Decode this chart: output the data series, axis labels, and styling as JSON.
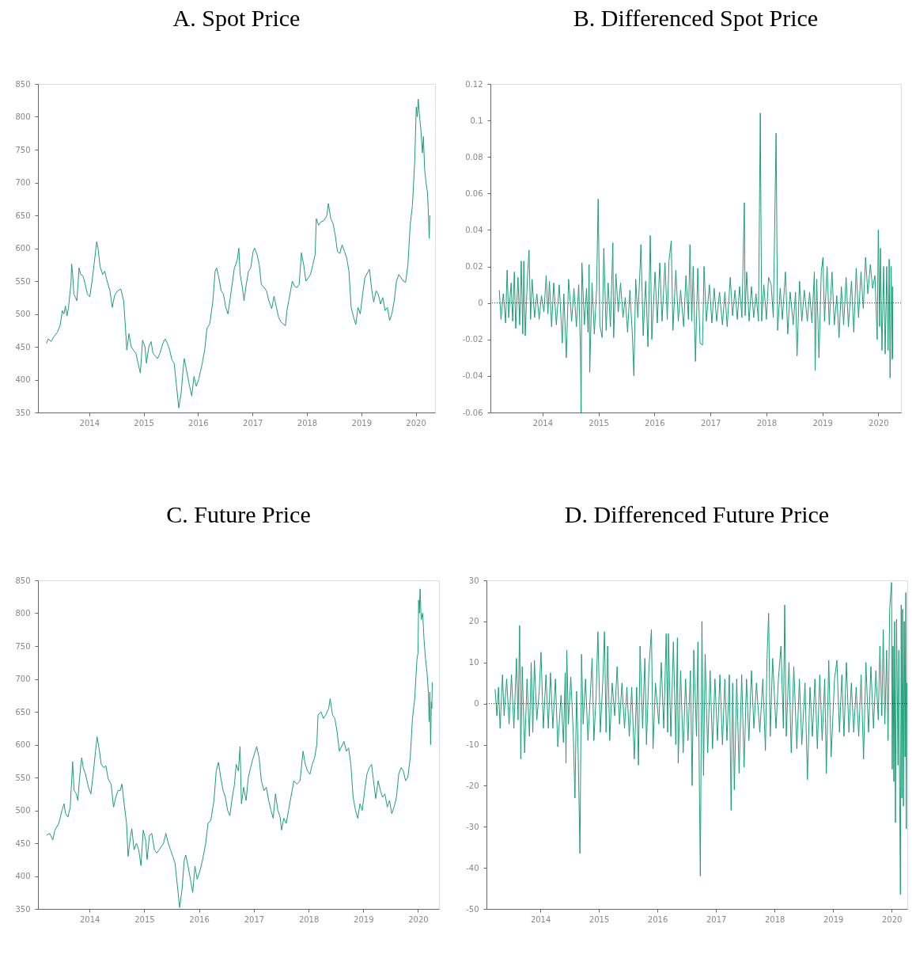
{
  "chart_data": [
    {
      "type": "line",
      "title": "A.  Spot Price",
      "grid": false,
      "xlim": [
        "2013-01-22",
        "2020-05-10"
      ],
      "xticks": [
        "2014",
        "2015",
        "2016",
        "2017",
        "2018",
        "2019",
        "2020"
      ],
      "ylim": [
        350,
        850
      ],
      "yticks": [
        350,
        400,
        450,
        500,
        550,
        600,
        650,
        700,
        750,
        800,
        850
      ],
      "x": [
        "2013-03-20",
        "2013-04-01",
        "2013-04-20",
        "2013-05-10",
        "2013-06-01",
        "2013-06-20",
        "2013-07-05",
        "2013-07-15",
        "2013-07-25",
        "2013-08-05",
        "2013-08-15",
        "2013-09-01",
        "2013-09-05",
        "2013-09-12",
        "2013-09-20",
        "2013-10-01",
        "2013-10-10",
        "2013-10-25",
        "2013-11-05",
        "2013-11-20",
        "2013-12-05",
        "2013-12-20",
        "2014-01-05",
        "2014-01-20",
        "2014-02-05",
        "2014-02-20",
        "2014-03-01",
        "2014-03-15",
        "2014-04-01",
        "2014-04-15",
        "2014-05-01",
        "2014-05-20",
        "2014-06-05",
        "2014-06-20",
        "2014-07-10",
        "2014-08-01",
        "2014-08-20",
        "2014-09-01",
        "2014-09-10",
        "2014-09-25",
        "2014-10-10",
        "2014-10-25",
        "2014-11-10",
        "2014-11-25",
        "2014-12-10",
        "2014-12-25",
        "2015-01-10",
        "2015-01-20",
        "2015-02-05",
        "2015-02-20",
        "2015-03-05",
        "2015-03-20",
        "2015-04-05",
        "2015-04-20",
        "2015-05-10",
        "2015-05-25",
        "2015-06-10",
        "2015-06-25",
        "2015-07-10",
        "2015-07-25",
        "2015-08-10",
        "2015-08-25",
        "2015-09-10",
        "2015-09-25",
        "2015-10-01",
        "2015-10-15",
        "2015-11-01",
        "2015-11-20",
        "2015-12-05",
        "2015-12-20",
        "2016-01-05",
        "2016-01-25",
        "2016-02-15",
        "2016-03-01",
        "2016-03-20",
        "2016-04-10",
        "2016-04-25",
        "2016-05-05",
        "2016-05-20",
        "2016-06-05",
        "2016-06-20",
        "2016-07-05",
        "2016-07-20",
        "2016-08-05",
        "2016-08-20",
        "2016-09-01",
        "2016-09-10",
        "2016-09-20",
        "2016-10-01",
        "2016-10-10",
        "2016-10-25",
        "2016-11-05",
        "2016-11-20",
        "2016-12-05",
        "2016-12-20",
        "2017-01-05",
        "2017-01-15",
        "2017-02-01",
        "2017-02-15",
        "2017-03-01",
        "2017-03-20",
        "2017-04-05",
        "2017-04-20",
        "2017-05-10",
        "2017-05-25",
        "2017-06-10",
        "2017-06-25",
        "2017-07-10",
        "2017-07-25",
        "2017-08-10",
        "2017-08-20",
        "2017-09-05",
        "2017-09-25",
        "2017-10-10",
        "2017-10-25",
        "2017-11-10",
        "2017-11-25",
        "2017-12-10",
        "2017-12-25",
        "2018-01-10",
        "2018-01-25",
        "2018-02-10",
        "2018-02-25",
        "2018-03-05",
        "2018-03-20",
        "2018-04-05",
        "2018-04-25",
        "2018-05-15",
        "2018-05-25",
        "2018-06-10",
        "2018-06-25",
        "2018-07-10",
        "2018-07-25",
        "2018-08-10",
        "2018-08-25",
        "2018-09-10",
        "2018-09-25",
        "2018-10-10",
        "2018-10-25",
        "2018-11-10",
        "2018-11-25",
        "2018-12-10",
        "2018-12-25",
        "2019-01-10",
        "2019-01-25",
        "2019-02-10",
        "2019-02-25",
        "2019-03-10",
        "2019-03-25",
        "2019-04-10",
        "2019-04-25",
        "2019-05-10",
        "2019-05-25",
        "2019-06-10",
        "2019-06-25",
        "2019-07-10",
        "2019-07-25",
        "2019-08-10",
        "2019-08-25",
        "2019-09-10",
        "2019-09-25",
        "2019-10-10",
        "2019-10-25",
        "2019-11-10",
        "2019-11-25",
        "2019-12-10",
        "2019-12-25",
        "2020-01-05",
        "2020-01-12",
        "2020-01-18",
        "2020-01-25",
        "2020-02-05",
        "2020-02-15",
        "2020-02-22",
        "2020-03-01",
        "2020-03-10",
        "2020-03-20",
        "2020-03-25",
        "2020-04-01",
        "2020-04-05"
      ],
      "series": [
        {
          "color": "#1b9e77",
          "values": [
            455,
            462,
            458,
            466,
            472,
            483,
            505,
            500,
            512,
            497,
            510,
            548,
            576,
            560,
            530,
            525,
            520,
            570,
            560,
            558,
            545,
            530,
            526,
            550,
            580,
            610,
            600,
            572,
            560,
            565,
            550,
            535,
            510,
            528,
            535,
            538,
            520,
            480,
            445,
            470,
            450,
            445,
            440,
            425,
            410,
            460,
            450,
            425,
            450,
            458,
            440,
            436,
            432,
            440,
            455,
            462,
            455,
            445,
            430,
            425,
            390,
            357,
            380,
            420,
            432,
            415,
            395,
            375,
            405,
            390,
            400,
            420,
            445,
            478,
            485,
            520,
            565,
            570,
            555,
            535,
            530,
            510,
            500,
            525,
            550,
            570,
            575,
            582,
            600,
            560,
            540,
            520,
            545,
            565,
            570,
            595,
            600,
            590,
            575,
            545,
            540,
            535,
            520,
            508,
            527,
            510,
            495,
            488,
            485,
            482,
            505,
            525,
            550,
            542,
            540,
            545,
            593,
            575,
            550,
            555,
            560,
            575,
            590,
            645,
            635,
            640,
            642,
            650,
            668,
            645,
            638,
            620,
            595,
            592,
            605,
            595,
            585,
            565,
            510,
            495,
            484,
            510,
            500,
            530,
            555,
            562,
            568,
            540,
            518,
            535,
            530,
            515,
            525,
            505,
            510,
            490,
            500,
            520,
            550,
            560,
            555,
            550,
            548,
            575,
            635,
            665,
            730,
            815,
            800,
            827,
            805,
            780,
            745,
            770,
            720,
            700,
            685,
            660,
            615,
            650
          ]
        }
      ]
    },
    {
      "type": "line",
      "title": "B. Differenced Spot Price",
      "grid": false,
      "xlim": [
        "2013-01-26",
        "2020-05-28"
      ],
      "xticks": [
        "2014",
        "2015",
        "2016",
        "2017",
        "2018",
        "2019",
        "2020"
      ],
      "ylim": [
        -0.06,
        0.12
      ],
      "yticks": [
        -0.06,
        -0.04,
        -0.02,
        0,
        0.02,
        0.04,
        0.06,
        0.08,
        0.1,
        0.12
      ],
      "ref_lines": [
        {
          "axis": "y",
          "value": 0,
          "line_style": "dotted",
          "color": "#000000"
        }
      ],
      "x": [
        "2013-03-25",
        "2013-04-05",
        "2013-04-20",
        "2013-05-05",
        "2013-05-15",
        "2013-05-25",
        "2013-06-10",
        "2013-06-20",
        "2013-07-01",
        "2013-07-10",
        "2013-07-25",
        "2013-08-05",
        "2013-08-15",
        "2013-08-25",
        "2013-09-01",
        "2013-09-10",
        "2013-09-25",
        "2013-10-05",
        "2013-10-15",
        "2013-10-25",
        "2013-11-10",
        "2013-11-25",
        "2013-12-10",
        "2013-12-25",
        "2014-01-10",
        "2014-01-25",
        "2014-02-05",
        "2014-02-15",
        "2014-03-01",
        "2014-03-15",
        "2014-04-01",
        "2014-04-20",
        "2014-05-10",
        "2014-05-20",
        "2014-06-05",
        "2014-06-20",
        "2014-07-10",
        "2014-07-25",
        "2014-08-10",
        "2014-08-25",
        "2014-09-05",
        "2014-09-10",
        "2014-09-15",
        "2014-10-01",
        "2014-10-15",
        "2014-10-25",
        "2014-11-01",
        "2014-11-05",
        "2014-11-20",
        "2014-12-05",
        "2014-12-20",
        "2014-12-30",
        "2015-01-10",
        "2015-01-25",
        "2015-02-05",
        "2015-02-20",
        "2015-03-05",
        "2015-03-20",
        "2015-04-05",
        "2015-04-10",
        "2015-04-25",
        "2015-05-10",
        "2015-05-25",
        "2015-06-10",
        "2015-06-25",
        "2015-07-10",
        "2015-07-25",
        "2015-08-10",
        "2015-08-20",
        "2015-09-01",
        "2015-09-15",
        "2015-10-01",
        "2015-10-05",
        "2015-10-20",
        "2015-11-05",
        "2015-11-20",
        "2015-12-05",
        "2015-12-15",
        "2016-01-05",
        "2016-01-20",
        "2016-02-05",
        "2016-02-20",
        "2016-03-10",
        "2016-03-25",
        "2016-04-05",
        "2016-04-20",
        "2016-05-01",
        "2016-05-20",
        "2016-06-05",
        "2016-06-20",
        "2016-07-10",
        "2016-07-25",
        "2016-08-10",
        "2016-08-20",
        "2016-09-01",
        "2016-09-10",
        "2016-09-25",
        "2016-10-10",
        "2016-10-25",
        "2016-11-10",
        "2016-11-20",
        "2016-12-05",
        "2016-12-25",
        "2017-01-10",
        "2017-01-25",
        "2017-02-10",
        "2017-03-01",
        "2017-03-20",
        "2017-04-05",
        "2017-04-20",
        "2017-05-10",
        "2017-05-25",
        "2017-06-10",
        "2017-06-25",
        "2017-07-10",
        "2017-07-25",
        "2017-08-10",
        "2017-08-15",
        "2017-08-25",
        "2017-09-10",
        "2017-09-25",
        "2017-10-10",
        "2017-10-25",
        "2017-11-10",
        "2017-11-22",
        "2017-12-01",
        "2017-12-15",
        "2018-01-01",
        "2018-01-15",
        "2018-02-01",
        "2018-02-15",
        "2018-03-05",
        "2018-03-15",
        "2018-04-01",
        "2018-04-15",
        "2018-05-05",
        "2018-05-20",
        "2018-06-05",
        "2018-06-25",
        "2018-07-10",
        "2018-07-20",
        "2018-08-05",
        "2018-08-20",
        "2018-09-05",
        "2018-09-25",
        "2018-10-10",
        "2018-10-25",
        "2018-11-10",
        "2018-11-15",
        "2018-11-25",
        "2018-12-10",
        "2018-12-25",
        "2019-01-05",
        "2019-01-15",
        "2019-02-01",
        "2019-02-15",
        "2019-03-05",
        "2019-03-20",
        "2019-04-05",
        "2019-04-20",
        "2019-05-05",
        "2019-05-20",
        "2019-06-05",
        "2019-06-20",
        "2019-07-10",
        "2019-07-25",
        "2019-08-10",
        "2019-08-25",
        "2019-09-10",
        "2019-09-25",
        "2019-10-10",
        "2019-10-25",
        "2019-11-10",
        "2019-11-25",
        "2019-12-10",
        "2019-12-25",
        "2020-01-01",
        "2020-01-10",
        "2020-01-15",
        "2020-01-25",
        "2020-02-05",
        "2020-02-15",
        "2020-02-25",
        "2020-03-05",
        "2020-03-12",
        "2020-03-18",
        "2020-03-25",
        "2020-04-01",
        "2020-04-03",
        "2020-04-05"
      ],
      "series": [
        {
          "color": "#1b9e77",
          "values": [
            0.007,
            -0.009,
            0.005,
            -0.011,
            0.018,
            -0.008,
            0.011,
            -0.01,
            0.017,
            -0.014,
            0.014,
            -0.012,
            0.023,
            -0.017,
            0.023,
            -0.018,
            0.015,
            0.029,
            -0.009,
            0.013,
            -0.008,
            0.005,
            -0.009,
            0.004,
            -0.005,
            0.015,
            -0.006,
            0.012,
            -0.013,
            0.011,
            -0.012,
            0.01,
            -0.022,
            0.005,
            -0.03,
            0.013,
            -0.01,
            0.008,
            -0.013,
            0.01,
            -0.024,
            -0.06,
            0.022,
            -0.012,
            0.008,
            -0.016,
            0.021,
            -0.038,
            0.011,
            -0.017,
            0.008,
            0.057,
            -0.012,
            -0.019,
            0.03,
            -0.015,
            0.011,
            -0.013,
            0.033,
            -0.019,
            0.016,
            -0.005,
            0.011,
            -0.008,
            0.003,
            -0.016,
            0.007,
            -0.017,
            -0.04,
            0.013,
            -0.008,
            0.022,
            0.032,
            -0.018,
            0.012,
            -0.024,
            0.037,
            -0.02,
            0.017,
            -0.011,
            0.022,
            -0.01,
            0.022,
            -0.009,
            0.023,
            0.034,
            -0.015,
            0.018,
            -0.01,
            0.007,
            -0.013,
            0.015,
            -0.009,
            0.032,
            -0.01,
            0.02,
            -0.032,
            0.019,
            -0.022,
            -0.023,
            0.02,
            -0.01,
            0.01,
            -0.011,
            0.008,
            -0.01,
            0.006,
            -0.012,
            0.006,
            -0.013,
            0.014,
            -0.007,
            0.007,
            -0.009,
            0.009,
            -0.008,
            0.055,
            -0.007,
            0.017,
            -0.01,
            0.009,
            -0.008,
            0.005,
            -0.01,
            0.104,
            -0.01,
            0.01,
            -0.009,
            0.014,
            0.01,
            -0.008,
            0.093,
            -0.015,
            0.008,
            -0.009,
            0.017,
            -0.017,
            0.006,
            -0.012,
            0.006,
            -0.029,
            0.012,
            -0.01,
            0.007,
            -0.01,
            0.006,
            -0.011,
            0.017,
            -0.037,
            0.013,
            -0.03,
            0.017,
            0.025,
            -0.01,
            0.02,
            -0.012,
            0.017,
            -0.012,
            0.004,
            -0.019,
            0.009,
            -0.012,
            0.014,
            -0.013,
            0.012,
            -0.016,
            0.019,
            -0.008,
            0.017,
            -0.003,
            0.025,
            0.005,
            0.021,
            0.008,
            0.015,
            -0.02,
            0.04,
            -0.013,
            0.03,
            -0.026,
            0.02,
            -0.028,
            0.02,
            -0.026,
            0.024,
            -0.041,
            0.02,
            -0.031,
            0.009,
            -0.03
          ]
        }
      ]
    },
    {
      "type": "line",
      "title": "C. Future Price",
      "grid": false,
      "xlim": [
        "2013-01-22",
        "2020-05-20"
      ],
      "xticks": [
        "2014",
        "2015",
        "2016",
        "2017",
        "2018",
        "2019",
        "2020"
      ],
      "ylim": [
        350,
        850
      ],
      "yticks": [
        350,
        400,
        450,
        500,
        550,
        600,
        650,
        700,
        750,
        800,
        850
      ],
      "x": [
        "2013-03-20",
        "2013-04-10",
        "2013-05-01",
        "2013-05-15",
        "2013-06-10",
        "2013-07-01",
        "2013-07-15",
        "2013-07-25",
        "2013-08-10",
        "2013-08-25",
        "2013-09-05",
        "2013-09-10",
        "2013-09-20",
        "2013-10-05",
        "2013-10-15",
        "2013-10-25",
        "2013-11-05",
        "2013-11-10",
        "2013-11-20",
        "2013-12-05",
        "2013-12-25",
        "2014-01-10",
        "2014-01-25",
        "2014-02-10",
        "2014-02-20",
        "2014-03-05",
        "2014-03-20",
        "2014-04-05",
        "2014-04-20",
        "2014-05-05",
        "2014-05-25",
        "2014-06-10",
        "2014-06-25",
        "2014-07-10",
        "2014-07-25",
        "2014-08-05",
        "2014-08-20",
        "2014-09-05",
        "2014-09-15",
        "2014-10-01",
        "2014-10-10",
        "2014-10-25",
        "2014-11-10",
        "2014-11-25",
        "2014-12-10",
        "2014-12-25",
        "2015-01-10",
        "2015-01-20",
        "2015-02-05",
        "2015-02-20",
        "2015-03-10",
        "2015-03-25",
        "2015-04-10",
        "2015-04-25",
        "2015-05-10",
        "2015-05-25",
        "2015-06-10",
        "2015-06-25",
        "2015-07-10",
        "2015-07-25",
        "2015-08-10",
        "2015-08-25",
        "2015-09-10",
        "2015-09-25",
        "2015-10-05",
        "2015-10-20",
        "2015-11-05",
        "2015-11-20",
        "2015-12-05",
        "2015-12-20",
        "2016-01-10",
        "2016-01-25",
        "2016-02-15",
        "2016-03-01",
        "2016-03-20",
        "2016-04-10",
        "2016-04-25",
        "2016-05-10",
        "2016-05-25",
        "2016-06-10",
        "2016-06-25",
        "2016-07-10",
        "2016-07-25",
        "2016-08-10",
        "2016-08-25",
        "2016-09-05",
        "2016-09-20",
        "2016-10-01",
        "2016-10-10",
        "2016-10-25",
        "2016-11-10",
        "2016-11-25",
        "2016-12-10",
        "2016-12-25",
        "2017-01-10",
        "2017-01-20",
        "2017-02-05",
        "2017-02-20",
        "2017-03-10",
        "2017-03-25",
        "2017-04-10",
        "2017-04-25",
        "2017-05-10",
        "2017-05-25",
        "2017-06-10",
        "2017-06-25",
        "2017-07-05",
        "2017-07-20",
        "2017-08-05",
        "2017-08-20",
        "2017-09-05",
        "2017-09-25",
        "2017-10-15",
        "2017-11-05",
        "2017-11-25",
        "2017-12-10",
        "2017-12-25",
        "2018-01-10",
        "2018-01-25",
        "2018-02-10",
        "2018-02-25",
        "2018-03-05",
        "2018-03-25",
        "2018-04-10",
        "2018-04-25",
        "2018-05-15",
        "2018-05-25",
        "2018-06-10",
        "2018-06-25",
        "2018-07-10",
        "2018-07-25",
        "2018-08-15",
        "2018-08-25",
        "2018-09-10",
        "2018-09-25",
        "2018-10-10",
        "2018-10-25",
        "2018-11-10",
        "2018-11-25",
        "2018-12-10",
        "2018-12-25",
        "2019-01-10",
        "2019-01-25",
        "2019-02-10",
        "2019-02-25",
        "2019-03-10",
        "2019-03-25",
        "2019-04-10",
        "2019-04-25",
        "2019-05-10",
        "2019-05-25",
        "2019-06-10",
        "2019-06-25",
        "2019-07-10",
        "2019-07-25",
        "2019-08-10",
        "2019-08-25",
        "2019-09-10",
        "2019-09-25",
        "2019-10-10",
        "2019-10-25",
        "2019-11-10",
        "2019-11-25",
        "2019-12-10",
        "2019-12-25",
        "2020-01-01",
        "2020-01-05",
        "2020-01-10",
        "2020-01-15",
        "2020-01-22",
        "2020-02-01",
        "2020-02-10",
        "2020-02-20",
        "2020-03-01",
        "2020-03-10",
        "2020-03-15",
        "2020-03-20",
        "2020-03-25",
        "2020-03-30",
        "2020-04-02",
        "2020-04-05"
      ],
      "series": [
        {
          "color": "#1b9e77",
          "values": [
            462,
            465,
            455,
            470,
            480,
            500,
            510,
            495,
            490,
            505,
            550,
            574,
            530,
            525,
            515,
            545,
            572,
            580,
            565,
            555,
            535,
            525,
            555,
            590,
            612,
            595,
            570,
            565,
            568,
            548,
            540,
            505,
            520,
            530,
            530,
            540,
            510,
            480,
            430,
            460,
            472,
            440,
            450,
            440,
            416,
            470,
            455,
            425,
            462,
            465,
            440,
            435,
            440,
            445,
            450,
            465,
            450,
            440,
            430,
            420,
            385,
            352,
            380,
            425,
            432,
            415,
            395,
            375,
            415,
            395,
            410,
            425,
            450,
            480,
            485,
            515,
            560,
            573,
            550,
            530,
            520,
            500,
            492,
            520,
            540,
            570,
            560,
            597,
            510,
            535,
            515,
            550,
            565,
            578,
            590,
            597,
            580,
            545,
            530,
            535,
            515,
            500,
            488,
            525,
            500,
            490,
            470,
            488,
            480,
            500,
            520,
            545,
            540,
            545,
            590,
            570,
            560,
            555,
            570,
            580,
            600,
            645,
            650,
            640,
            645,
            655,
            670,
            645,
            640,
            620,
            590,
            600,
            605,
            590,
            595,
            570,
            520,
            500,
            488,
            510,
            500,
            530,
            555,
            565,
            570,
            545,
            518,
            545,
            530,
            520,
            525,
            505,
            515,
            495,
            505,
            520,
            555,
            565,
            560,
            545,
            550,
            580,
            640,
            670,
            730,
            740,
            820,
            800,
            837,
            790,
            800,
            760,
            730,
            710,
            680,
            635,
            680,
            600,
            665,
            655,
            695
          ]
        }
      ]
    },
    {
      "type": "line",
      "title": "D. Differenced Future Price",
      "grid": false,
      "xlim": [
        "2013-01-30",
        "2020-04-08"
      ],
      "xticks": [
        "2014",
        "2015",
        "2016",
        "2017",
        "2018",
        "2019",
        "2020"
      ],
      "ylim": [
        -50,
        30
      ],
      "yticks": [
        -50,
        -40,
        -30,
        -20,
        -10,
        0,
        10,
        20,
        30
      ],
      "ref_lines": [
        {
          "axis": "y",
          "value": 0,
          "line_style": "dotted",
          "color": "#000000"
        }
      ],
      "x": [
        "2013-03-25",
        "2013-04-05",
        "2013-04-15",
        "2013-04-25",
        "2013-05-10",
        "2013-05-20",
        "2013-06-05",
        "2013-06-20",
        "2013-07-05",
        "2013-07-20",
        "2013-08-05",
        "2013-08-15",
        "2013-08-25",
        "2013-09-01",
        "2013-09-10",
        "2013-09-25",
        "2013-10-10",
        "2013-10-25",
        "2013-11-05",
        "2013-11-15",
        "2013-11-25",
        "2013-12-10",
        "2013-12-25",
        "2014-01-05",
        "2014-01-20",
        "2014-02-05",
        "2014-02-20",
        "2014-03-05",
        "2014-03-20",
        "2014-04-05",
        "2014-04-20",
        "2014-05-10",
        "2014-05-25",
        "2014-06-05",
        "2014-06-10",
        "2014-06-15",
        "2014-06-25",
        "2014-07-10",
        "2014-07-25",
        "2014-08-05",
        "2014-08-15",
        "2014-08-25",
        "2014-09-05",
        "2014-09-15",
        "2014-09-25",
        "2014-10-10",
        "2014-10-25",
        "2014-11-10",
        "2014-11-20",
        "2014-12-01",
        "2014-12-15",
        "2014-12-26",
        "2015-01-10",
        "2015-01-25",
        "2015-02-05",
        "2015-02-15",
        "2015-02-25",
        "2015-03-10",
        "2015-03-25",
        "2015-04-10",
        "2015-04-25",
        "2015-05-10",
        "2015-05-25",
        "2015-06-10",
        "2015-06-25",
        "2015-07-10",
        "2015-07-25",
        "2015-08-10",
        "2015-08-25",
        "2015-09-05",
        "2015-09-15",
        "2015-10-01",
        "2015-10-15",
        "2015-10-25",
        "2015-11-10",
        "2015-11-25",
        "2015-12-05",
        "2015-12-20",
        "2016-01-10",
        "2016-01-25",
        "2016-02-10",
        "2016-02-25",
        "2016-03-05",
        "2016-03-10",
        "2016-03-25",
        "2016-04-10",
        "2016-04-25",
        "2016-05-05",
        "2016-05-10",
        "2016-05-25",
        "2016-06-10",
        "2016-06-25",
        "2016-07-10",
        "2016-07-25",
        "2016-08-05",
        "2016-08-15",
        "2016-09-01",
        "2016-09-10",
        "2016-09-25",
        "2016-10-05",
        "2016-10-15",
        "2016-10-25",
        "2016-11-10",
        "2016-11-25",
        "2016-12-10",
        "2016-12-25",
        "2017-01-10",
        "2017-01-25",
        "2017-02-10",
        "2017-02-25",
        "2017-03-10",
        "2017-03-25",
        "2017-04-05",
        "2017-04-15",
        "2017-04-25",
        "2017-05-10",
        "2017-05-25",
        "2017-06-10",
        "2017-06-25",
        "2017-07-10",
        "2017-07-25",
        "2017-08-10",
        "2017-08-25",
        "2017-09-10",
        "2017-10-01",
        "2017-10-20",
        "2017-11-05",
        "2017-11-15",
        "2017-11-25",
        "2017-12-05",
        "2017-12-20",
        "2018-01-10",
        "2018-01-25",
        "2018-02-10",
        "2018-02-25",
        "2018-03-05",
        "2018-03-15",
        "2018-04-01",
        "2018-04-15",
        "2018-05-01",
        "2018-05-20",
        "2018-06-05",
        "2018-06-20",
        "2018-07-10",
        "2018-07-25",
        "2018-08-10",
        "2018-08-25",
        "2018-09-10",
        "2018-09-25",
        "2018-10-10",
        "2018-10-25",
        "2018-11-10",
        "2018-11-20",
        "2018-12-05",
        "2018-12-20",
        "2019-01-10",
        "2019-01-25",
        "2019-02-10",
        "2019-02-25",
        "2019-03-10",
        "2019-03-25",
        "2019-04-10",
        "2019-04-25",
        "2019-05-10",
        "2019-05-25",
        "2019-06-10",
        "2019-06-25",
        "2019-07-10",
        "2019-07-25",
        "2019-08-10",
        "2019-08-25",
        "2019-09-10",
        "2019-09-25",
        "2019-10-10",
        "2019-10-20",
        "2019-11-01",
        "2019-11-10",
        "2019-11-20",
        "2019-12-01",
        "2019-12-10",
        "2019-12-20",
        "2020-01-01",
        "2020-01-05",
        "2020-01-10",
        "2020-01-15",
        "2020-01-20",
        "2020-01-25",
        "2020-02-01",
        "2020-02-10",
        "2020-02-15",
        "2020-02-20",
        "2020-02-25",
        "2020-03-01",
        "2020-03-05",
        "2020-03-10",
        "2020-03-15",
        "2020-03-20",
        "2020-03-25",
        "2020-03-30",
        "2020-04-02",
        "2020-04-05"
      ],
      "series": [
        {
          "color": "#1b9e77",
          "values": [
            3.5,
            -3,
            4,
            -6,
            7,
            -3,
            6,
            -5,
            7,
            -6,
            11,
            -4,
            19,
            -13.5,
            9,
            -12,
            6,
            -8,
            10,
            -7,
            10.5,
            -4,
            3,
            12.5,
            -6,
            7,
            -6,
            7.5,
            -6,
            6,
            -10.5,
            2,
            -9.5,
            7.5,
            -14.5,
            13,
            -5,
            6.5,
            -7,
            -23,
            3,
            -12,
            -36.5,
            12,
            -5,
            6,
            -9,
            3,
            11,
            -9,
            2,
            17.5,
            -7,
            5,
            17.5,
            -7,
            14,
            -9,
            5,
            -3,
            9,
            -5,
            5,
            -6,
            4,
            -8,
            4,
            -13.5,
            4,
            -15,
            14,
            -6,
            11,
            -10,
            9,
            18,
            -11,
            5,
            -5,
            10,
            -6,
            17,
            -7,
            17,
            -8,
            15,
            -10,
            16,
            -14.5,
            8,
            -12,
            6,
            -9,
            8,
            -20,
            13,
            -8,
            15,
            -42,
            20,
            -17.5,
            12,
            -12,
            8,
            -11,
            6,
            -9,
            7,
            -10,
            6,
            -9,
            7,
            -26,
            5,
            -21,
            6,
            -17,
            7,
            -15.5,
            6,
            -9,
            8,
            -6,
            5,
            -7,
            6,
            -11.5,
            11,
            22,
            -8,
            11,
            -6,
            6,
            14,
            -6,
            24,
            -8,
            10,
            -12,
            9,
            -11,
            6,
            -10,
            5,
            -18.5,
            4,
            -8,
            6,
            -11,
            7,
            -9,
            6,
            -17,
            10.5,
            -13,
            6,
            10.5,
            -7,
            7,
            -8,
            10,
            -7,
            5,
            -7,
            4,
            -8,
            7,
            -13.5,
            10,
            -7,
            9,
            -6,
            8,
            -4,
            14,
            -3,
            18,
            -5,
            13,
            -9,
            23,
            29.5,
            -16,
            14,
            -19,
            20,
            -29,
            20.5,
            -15,
            13,
            -20,
            -46.5,
            24,
            -23,
            23,
            -25,
            20,
            -13,
            27,
            -30.5,
            5
          ]
        }
      ]
    }
  ]
}
